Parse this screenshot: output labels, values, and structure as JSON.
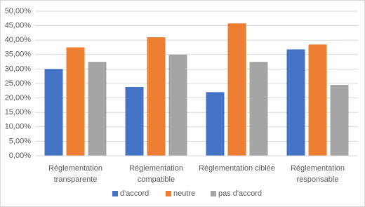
{
  "chart_data": {
    "type": "bar",
    "categories": [
      [
        "Réglementation",
        "transparente"
      ],
      [
        "Réglementation",
        "compatible"
      ],
      [
        "Réglementation ciblée"
      ],
      [
        "Réglementation",
        "responsable"
      ]
    ],
    "series": [
      {
        "name": "d'accord",
        "color": "#4472c4",
        "values": [
          30,
          23.8,
          22,
          36.8
        ]
      },
      {
        "name": "neutre",
        "color": "#ed7d31",
        "values": [
          37.5,
          41,
          45.8,
          38.5
        ]
      },
      {
        "name": "pas d'accord",
        "color": "#a5a5a5",
        "values": [
          32.5,
          35,
          32.5,
          24.5
        ]
      }
    ],
    "ylim": [
      0,
      50
    ],
    "yticks": [
      {
        "value": 0,
        "label": "0,00%"
      },
      {
        "value": 5,
        "label": "5,00%"
      },
      {
        "value": 10,
        "label": "10,00%"
      },
      {
        "value": 15,
        "label": "15,00%"
      },
      {
        "value": 20,
        "label": "20,00%"
      },
      {
        "value": 25,
        "label": "25,00%"
      },
      {
        "value": 30,
        "label": "30,00%"
      },
      {
        "value": 35,
        "label": "35,00%"
      },
      {
        "value": 40,
        "label": "40,00%"
      },
      {
        "value": 45,
        "label": "45,00%"
      },
      {
        "value": 50,
        "label": "50,00%"
      }
    ],
    "grid": true,
    "legend": "bottom"
  }
}
